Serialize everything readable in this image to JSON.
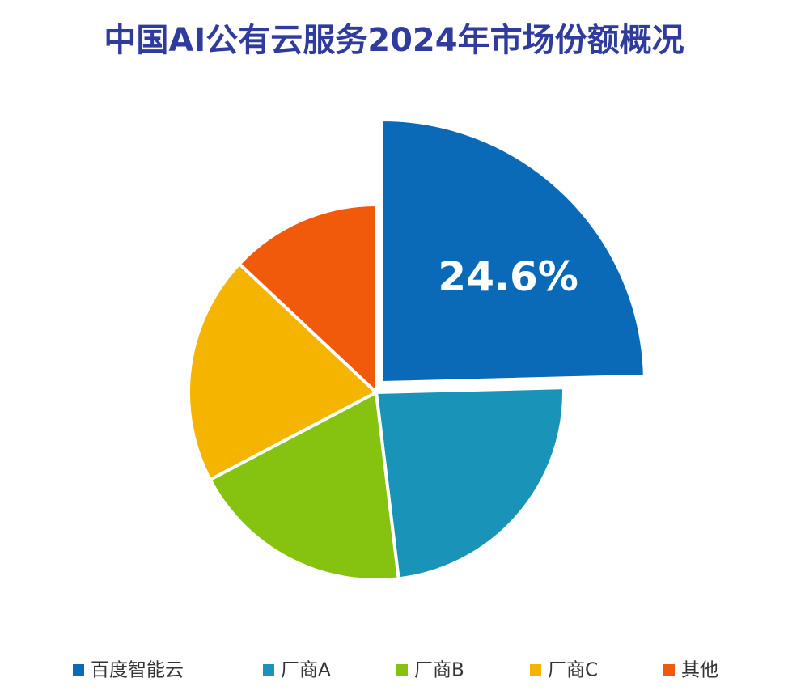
{
  "chart_data": {
    "type": "pie",
    "title": "中国AI公有云服务2024年市场份额概况",
    "categories": [
      "百度智能云",
      "厂商A",
      "厂商B",
      "厂商C",
      "其他"
    ],
    "values": [
      24.6,
      23.5,
      19.2,
      19.7,
      13.0
    ],
    "value_labels": [
      "24.6%",
      null,
      null,
      null,
      null
    ],
    "colors": [
      "#0b6ab8",
      "#1a93b8",
      "#86c311",
      "#f5b400",
      "#f15a0a"
    ],
    "highlight_index": 0,
    "legend": "bottom"
  }
}
